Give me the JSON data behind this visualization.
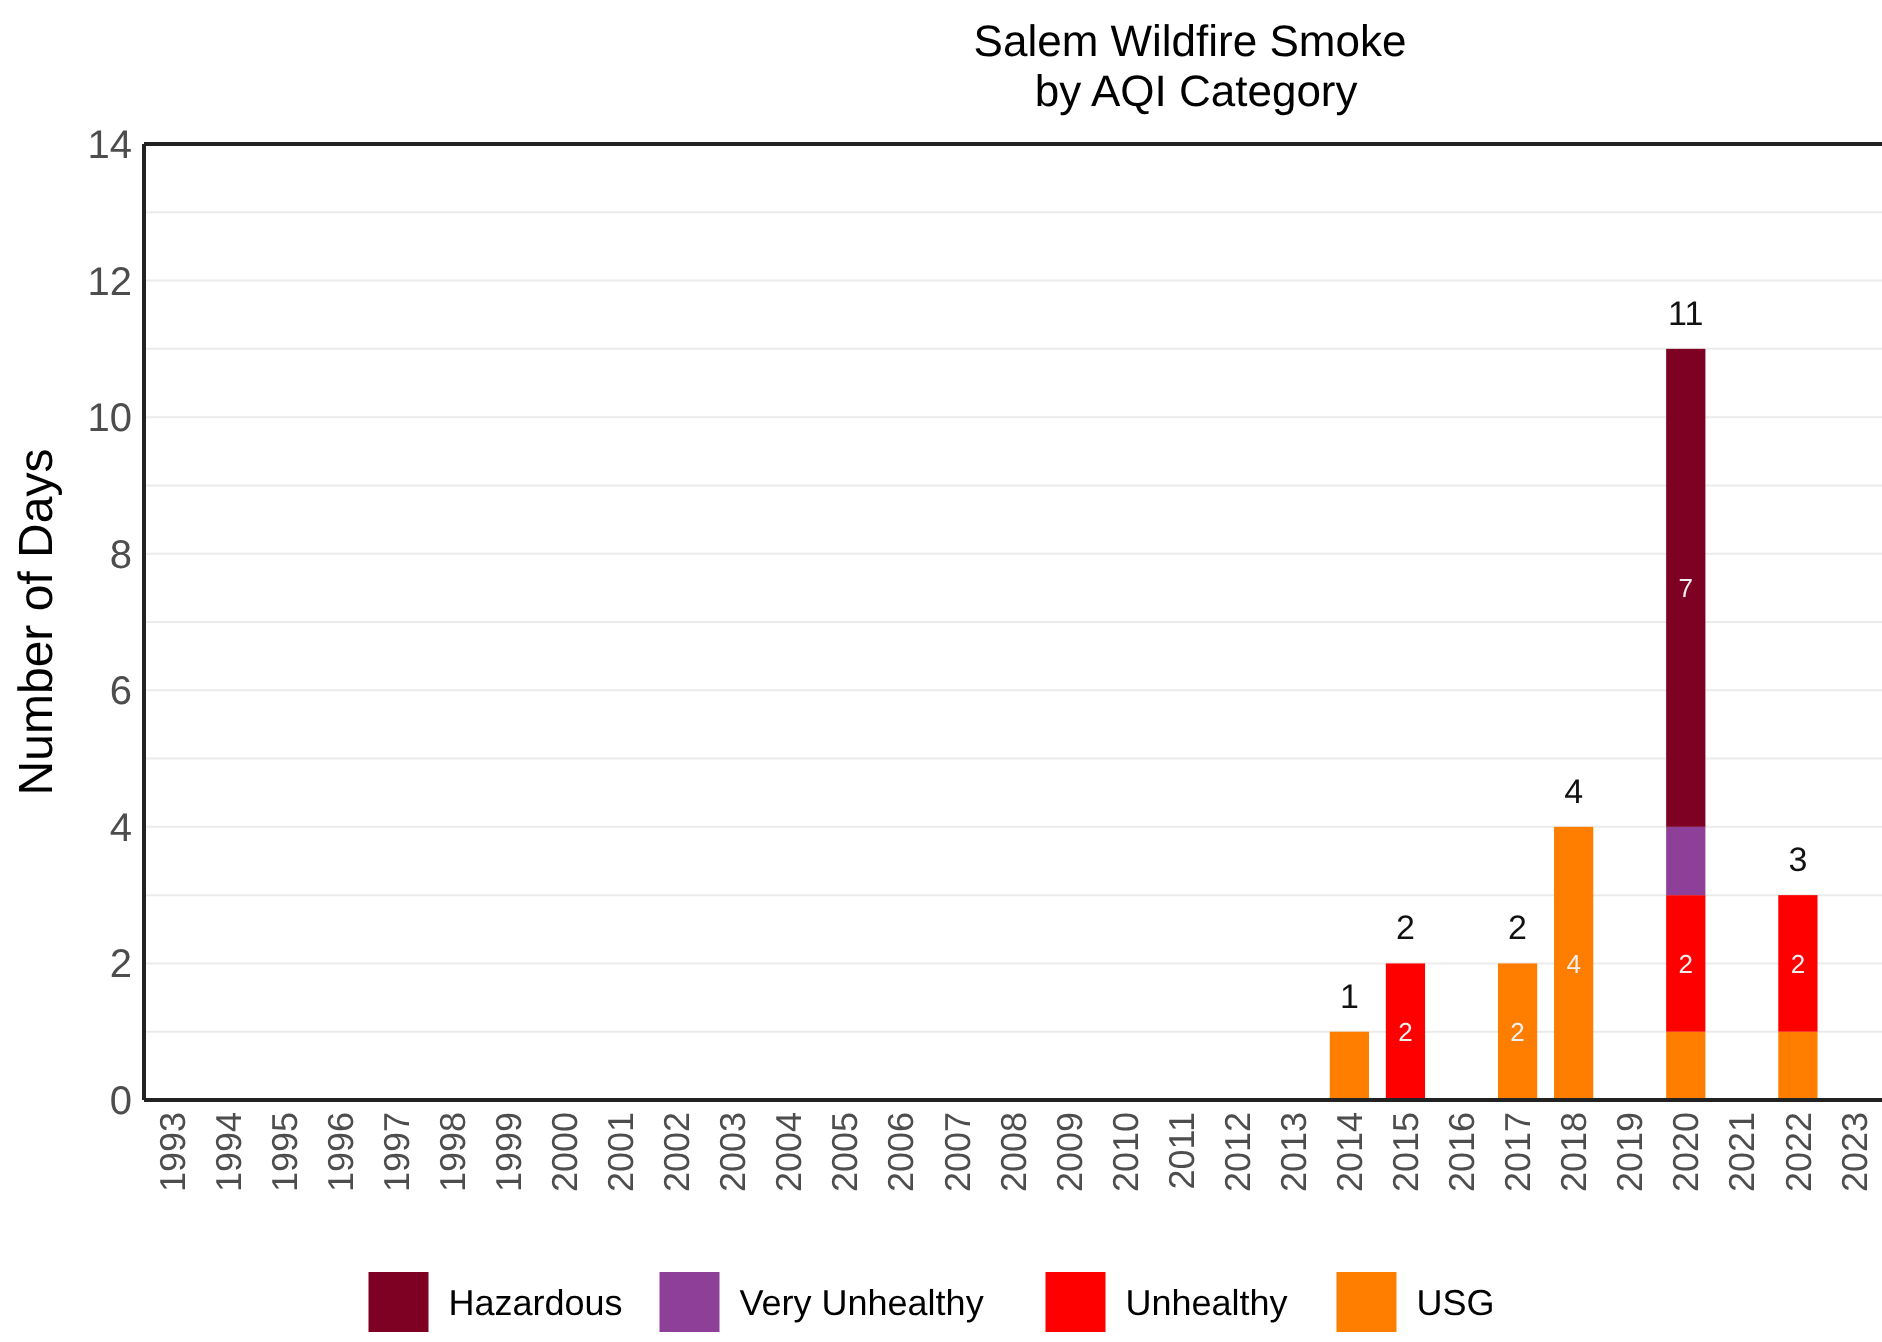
{
  "chart_data": {
    "type": "bar",
    "stacked": true,
    "title": "Salem Wildfire Smoke\n by AQI Category",
    "ylabel": "Number of Days",
    "categories": [
      "1993",
      "1994",
      "1995",
      "1996",
      "1997",
      "1998",
      "1999",
      "2000",
      "2001",
      "2002",
      "2003",
      "2004",
      "2005",
      "2006",
      "2007",
      "2008",
      "2009",
      "2010",
      "2011",
      "2012",
      "2013",
      "2014",
      "2015",
      "2016",
      "2017",
      "2018",
      "2019",
      "2020",
      "2021",
      "2022",
      "2023"
    ],
    "series": [
      {
        "name": "USG",
        "color": "#ff7e00",
        "values": [
          0,
          0,
          0,
          0,
          0,
          0,
          0,
          0,
          0,
          0,
          0,
          0,
          0,
          0,
          0,
          0,
          0,
          0,
          0,
          0,
          0,
          1,
          0,
          0,
          2,
          4,
          0,
          1,
          0,
          1,
          0
        ],
        "value_labels": [
          null,
          null,
          null,
          null,
          null,
          null,
          null,
          null,
          null,
          null,
          null,
          null,
          null,
          null,
          null,
          null,
          null,
          null,
          null,
          null,
          null,
          null,
          null,
          null,
          "2",
          "4",
          null,
          null,
          null,
          null,
          null
        ]
      },
      {
        "name": "Unhealthy",
        "color": "#ff0000",
        "values": [
          0,
          0,
          0,
          0,
          0,
          0,
          0,
          0,
          0,
          0,
          0,
          0,
          0,
          0,
          0,
          0,
          0,
          0,
          0,
          0,
          0,
          0,
          2,
          0,
          0,
          0,
          0,
          2,
          0,
          2,
          0
        ],
        "value_labels": [
          null,
          null,
          null,
          null,
          null,
          null,
          null,
          null,
          null,
          null,
          null,
          null,
          null,
          null,
          null,
          null,
          null,
          null,
          null,
          null,
          null,
          null,
          "2",
          null,
          null,
          null,
          null,
          "2",
          null,
          "2",
          null
        ]
      },
      {
        "name": "Very Unhealthy",
        "color": "#8e3f97",
        "values": [
          0,
          0,
          0,
          0,
          0,
          0,
          0,
          0,
          0,
          0,
          0,
          0,
          0,
          0,
          0,
          0,
          0,
          0,
          0,
          0,
          0,
          0,
          0,
          0,
          0,
          0,
          0,
          1,
          0,
          0,
          0
        ]
      },
      {
        "name": "Hazardous",
        "color": "#7e0023",
        "values": [
          0,
          0,
          0,
          0,
          0,
          0,
          0,
          0,
          0,
          0,
          0,
          0,
          0,
          0,
          0,
          0,
          0,
          0,
          0,
          0,
          0,
          0,
          0,
          0,
          0,
          0,
          0,
          7,
          0,
          0,
          0
        ],
        "value_labels": [
          null,
          null,
          null,
          null,
          null,
          null,
          null,
          null,
          null,
          null,
          null,
          null,
          null,
          null,
          null,
          null,
          null,
          null,
          null,
          null,
          null,
          null,
          null,
          null,
          null,
          null,
          null,
          "7",
          null,
          null,
          null
        ]
      }
    ],
    "totals": [
      null,
      null,
      null,
      null,
      null,
      null,
      null,
      null,
      null,
      null,
      null,
      null,
      null,
      null,
      null,
      null,
      null,
      null,
      null,
      null,
      null,
      "1",
      "2",
      null,
      "2",
      "4",
      null,
      "11",
      null,
      "3",
      null
    ],
    "ylim": [
      0,
      14
    ],
    "yticks": [
      0,
      {
        "value": 1,
        "label": null
      },
      2,
      {
        "value": 3,
        "label": null
      },
      4,
      {
        "value": 5,
        "label": null
      },
      6,
      {
        "value": 7,
        "label": null
      },
      8,
      {
        "value": 9,
        "label": null
      },
      10,
      {
        "value": 11,
        "label": null
      },
      12,
      {
        "value": 13,
        "label": null
      },
      14
    ],
    "grid": "y",
    "legend": "bottom"
  }
}
